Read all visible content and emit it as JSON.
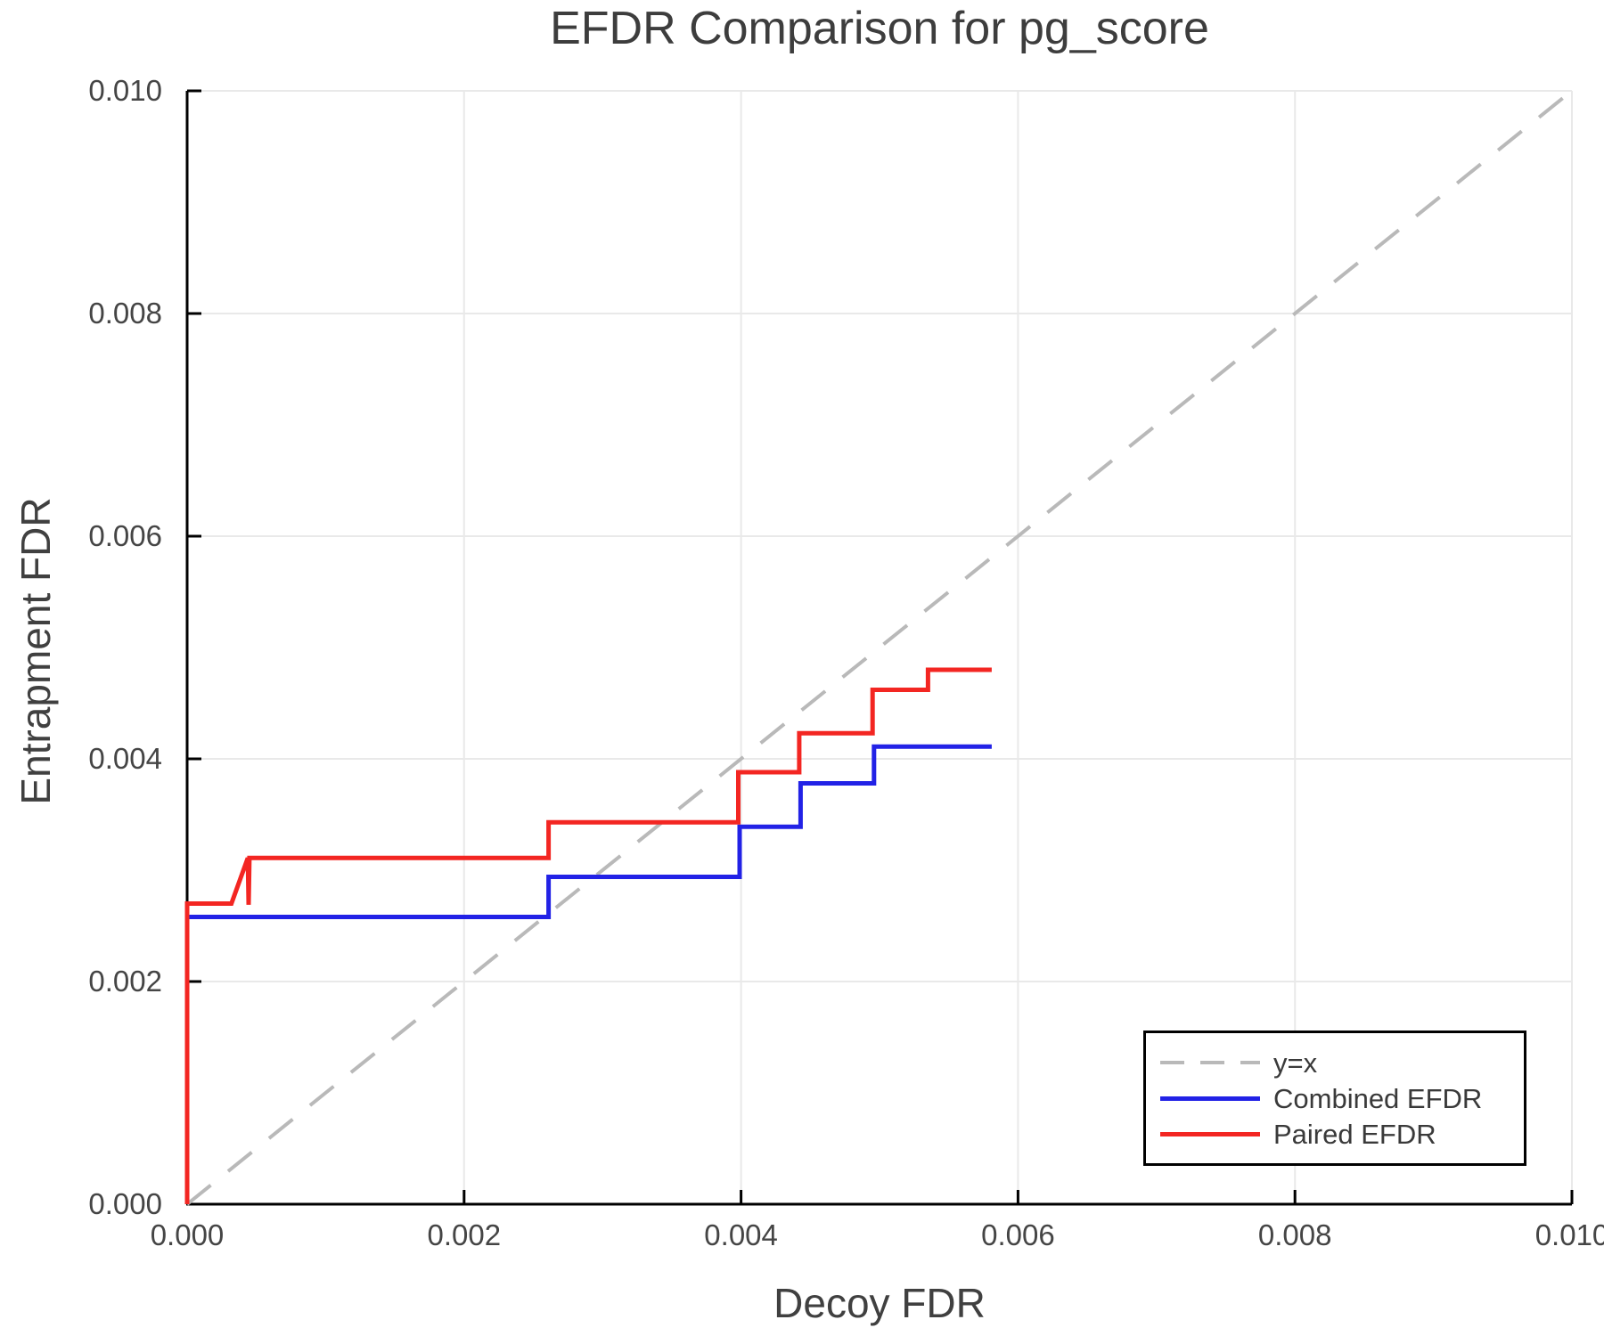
{
  "chart_data": {
    "type": "line",
    "title": "EFDR Comparison for pg_score",
    "xlabel": "Decoy FDR",
    "ylabel": "Entrapment FDR",
    "xlim": [
      0.0,
      0.01
    ],
    "ylim": [
      0.0,
      0.01
    ],
    "grid": true,
    "legend_position": "lower right",
    "xticks": {
      "values": [
        0.0,
        0.002,
        0.004,
        0.006,
        0.008,
        0.01
      ],
      "labels": [
        "0.000",
        "0.002",
        "0.004",
        "0.006",
        "0.008",
        "0.010"
      ]
    },
    "yticks": {
      "values": [
        0.0,
        0.002,
        0.004,
        0.006,
        0.008,
        0.01
      ],
      "labels": [
        "0.000",
        "0.002",
        "0.004",
        "0.006",
        "0.008",
        "0.010"
      ]
    },
    "colors": {
      "spine": "#000000",
      "grid": "#e9e9e9",
      "tick_text": "#454545",
      "title_text": "#3d3d3d",
      "identity_line": "#b9b9b9",
      "combined": "#2222e6",
      "paired": "#f32622"
    },
    "series": [
      {
        "name": "y=x",
        "style": "dashed",
        "color": "#b9b9b9",
        "width": 4,
        "points": [
          [
            0.0,
            0.0
          ],
          [
            0.01,
            0.01
          ]
        ]
      },
      {
        "name": "Combined EFDR",
        "style": "solid",
        "color": "#2222e6",
        "width": 5,
        "points": [
          [
            0.0,
            0.0
          ],
          [
            0.0,
            0.00258
          ],
          [
            0.00261,
            0.00258
          ],
          [
            0.00261,
            0.00294
          ],
          [
            0.00399,
            0.00294
          ],
          [
            0.00399,
            0.00339
          ],
          [
            0.00443,
            0.00339
          ],
          [
            0.00443,
            0.00378
          ],
          [
            0.00496,
            0.00378
          ],
          [
            0.00496,
            0.00411
          ],
          [
            0.00581,
            0.00411
          ]
        ]
      },
      {
        "name": "Paired EFDR",
        "style": "solid",
        "color": "#f32622",
        "width": 5,
        "points": [
          [
            0.0,
            0.0
          ],
          [
            0.0,
            0.0027
          ],
          [
            0.00032,
            0.0027
          ],
          [
            0.000438,
            0.00311
          ],
          [
            0.000444,
            0.00269
          ],
          [
            0.00045,
            0.00311
          ],
          [
            0.00261,
            0.00311
          ],
          [
            0.00261,
            0.00343
          ],
          [
            0.00398,
            0.00343
          ],
          [
            0.00398,
            0.00388
          ],
          [
            0.00442,
            0.00388
          ],
          [
            0.00442,
            0.00423
          ],
          [
            0.00495,
            0.00423
          ],
          [
            0.00495,
            0.00462
          ],
          [
            0.00535,
            0.00462
          ],
          [
            0.00535,
            0.0048
          ],
          [
            0.00581,
            0.0048
          ]
        ]
      }
    ]
  }
}
